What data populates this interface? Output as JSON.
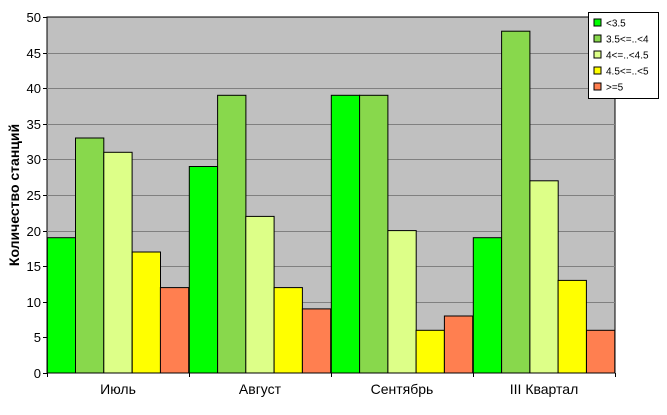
{
  "chart_data": {
    "type": "bar",
    "title": "",
    "xlabel": "",
    "ylabel": "Количество станций",
    "ylim": [
      0,
      50
    ],
    "yticks": [
      0,
      5,
      10,
      15,
      20,
      25,
      30,
      35,
      40,
      45,
      50
    ],
    "grid": true,
    "legend_position": "top-right",
    "categories": [
      "Июль",
      "Август",
      "Сентябрь",
      "III Квартал"
    ],
    "series": [
      {
        "name": "<3.5",
        "color": "#00ff00",
        "values": [
          19,
          29,
          39,
          19
        ]
      },
      {
        "name": "3.5<=..<4",
        "color": "#88d84c",
        "values": [
          33,
          39,
          39,
          48
        ]
      },
      {
        "name": "4<=..<4.5",
        "color": "#ddff88",
        "values": [
          31,
          22,
          20,
          27
        ]
      },
      {
        "name": "4.5<=..<5",
        "color": "#ffff00",
        "values": [
          17,
          12,
          6,
          13
        ]
      },
      {
        "name": ">=5",
        "color": "#ff7f50",
        "values": [
          12,
          9,
          8,
          6
        ]
      }
    ],
    "plot_background": "#c0c0c0"
  }
}
